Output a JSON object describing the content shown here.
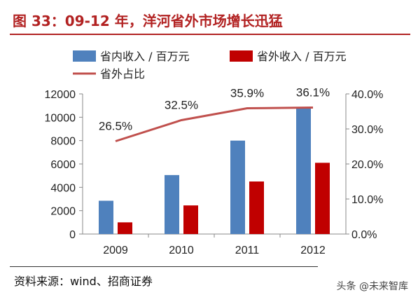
{
  "figure": {
    "title": "图 33：09-12 年，洋河省外市场增长迅猛",
    "source": "资料来源：wind、招商证券",
    "watermark": "头条 @未来智库"
  },
  "colors": {
    "title": "#b22222",
    "series_domestic": "#4f81bd",
    "series_outside": "#c00000",
    "series_share": "#c0504d"
  },
  "chart_data": {
    "type": "bar",
    "categories": [
      "2009",
      "2010",
      "2011",
      "2012"
    ],
    "series": [
      {
        "name": "省内收入 / 百万元",
        "type": "bar",
        "axis": "left",
        "values": [
          2850,
          5050,
          8000,
          10800
        ]
      },
      {
        "name": "省外收入 / 百万元",
        "type": "bar",
        "axis": "left",
        "values": [
          1000,
          2450,
          4500,
          6100
        ]
      },
      {
        "name": "省外占比",
        "type": "line",
        "axis": "right",
        "values": [
          26.5,
          32.5,
          35.9,
          36.1
        ],
        "labels": [
          "26.5%",
          "32.5%",
          "35.9%",
          "36.1%"
        ]
      }
    ],
    "ylim": [
      0,
      12000
    ],
    "yticks": [
      "0",
      "2000",
      "4000",
      "6000",
      "8000",
      "10000",
      "12000"
    ],
    "y2lim": [
      0,
      40
    ],
    "y2ticks": [
      "0.0%",
      "10.0%",
      "20.0%",
      "30.0%",
      "40.0%"
    ],
    "legend": "top",
    "grid": false
  }
}
